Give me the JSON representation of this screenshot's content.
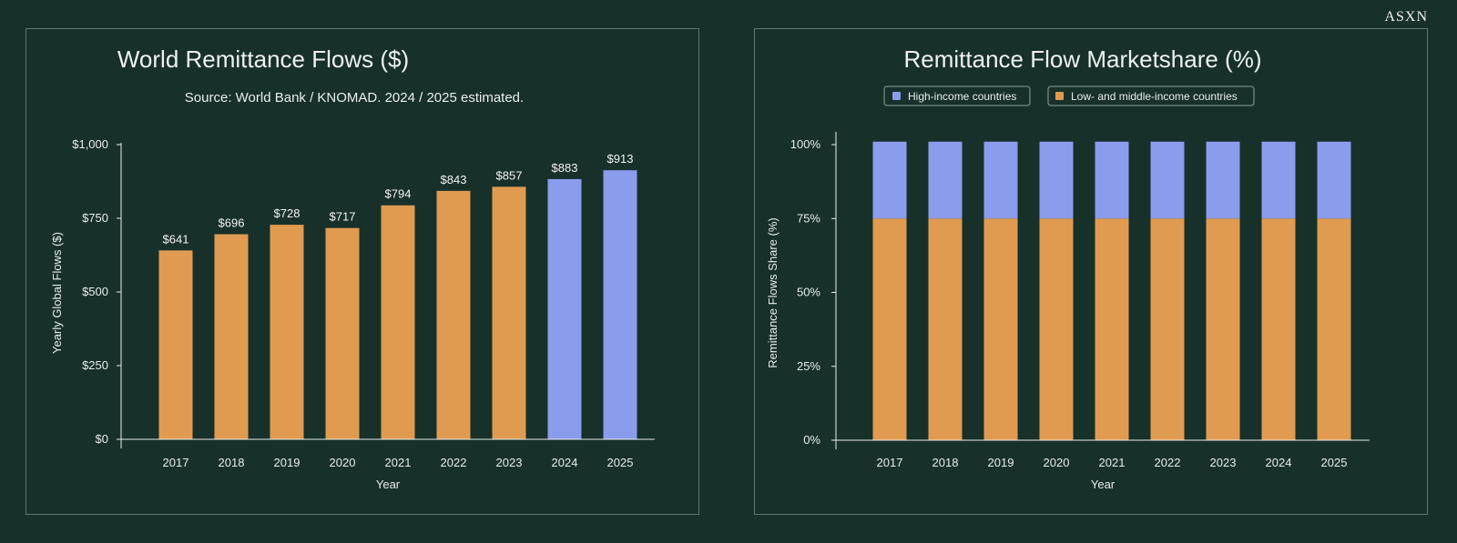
{
  "brand": "ASXN",
  "colors": {
    "background": "#18302a",
    "panel_border": "#5f7a72",
    "actual": "#e09b50",
    "estimated": "#8b9cec",
    "axis": "#e9eeec"
  },
  "chart_data": [
    {
      "type": "bar",
      "title": "World Remittance Flows ($)",
      "subtitle": "Source: World Bank / KNOMAD. 2024 / 2025 estimated.",
      "xlabel": "Year",
      "ylabel": "Yearly Global Flows ($)",
      "ylim": [
        0,
        1000
      ],
      "yticks": [
        "$0",
        "$250",
        "$500",
        "$750",
        "$1,000"
      ],
      "ytick_values": [
        0,
        250,
        500,
        750,
        1000
      ],
      "categories": [
        "2017",
        "2018",
        "2019",
        "2020",
        "2021",
        "2022",
        "2023",
        "2024",
        "2025"
      ],
      "values": [
        641,
        696,
        728,
        717,
        794,
        843,
        857,
        883,
        913
      ],
      "data_labels": [
        "$641",
        "$696",
        "$728",
        "$717",
        "$794",
        "$843",
        "$857",
        "$883",
        "$913"
      ],
      "estimated": [
        false,
        false,
        false,
        false,
        false,
        false,
        false,
        true,
        true
      ]
    },
    {
      "type": "bar",
      "stacked": true,
      "title": "Remittance Flow Marketshare (%)",
      "xlabel": "Year",
      "ylabel": "Remittance Flows Share (%)",
      "ylim": [
        0,
        100
      ],
      "yticks": [
        "0%",
        "25%",
        "50%",
        "75%",
        "100%"
      ],
      "ytick_values": [
        0,
        25,
        50,
        75,
        100
      ],
      "categories": [
        "2017",
        "2018",
        "2019",
        "2020",
        "2021",
        "2022",
        "2023",
        "2024",
        "2025"
      ],
      "legend": [
        "High-income countries",
        "Low- and middle-income countries"
      ],
      "series": [
        {
          "name": "Low- and middle-income countries",
          "values": [
            75,
            75,
            75,
            75,
            75,
            75,
            75,
            75,
            75
          ]
        },
        {
          "name": "High-income countries",
          "values": [
            26,
            26,
            26,
            26,
            26,
            26,
            26,
            26,
            26
          ]
        }
      ]
    }
  ]
}
